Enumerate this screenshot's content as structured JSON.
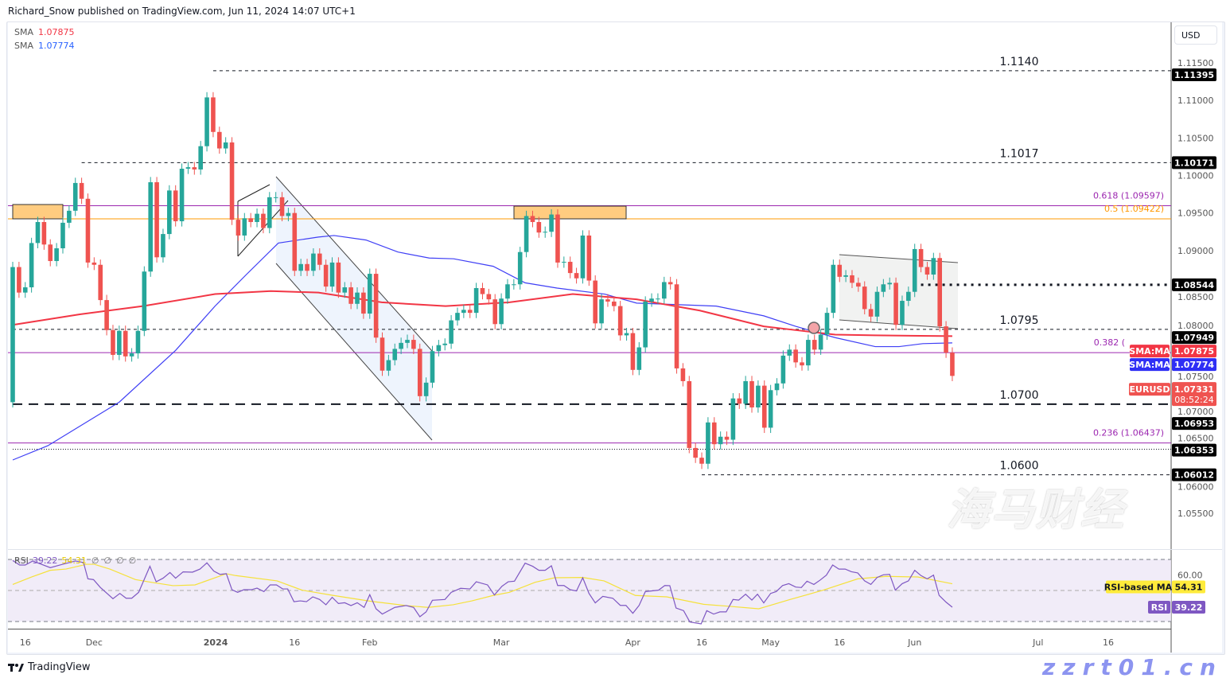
{
  "header": {
    "published": "Richard_Snow published on TradingView.com, Jun 11, 2024 14:07 UTC+1"
  },
  "legend": [
    {
      "label": "SMA",
      "value": "1.07875",
      "color": "#f23645"
    },
    {
      "label": "SMA",
      "value": "1.07774",
      "color": "#2962ff"
    }
  ],
  "currency_button": "USD",
  "footer": {
    "brand": "TradingView"
  },
  "watermark": {
    "line1": "海马财经",
    "line2": "zzrt01.cn"
  },
  "colors": {
    "up": "#26a69a",
    "down": "#ef5350",
    "sma200": "#f23645",
    "sma50": "#3f3ff5",
    "rsi": "#7e57c2",
    "rsi_ma": "#ffeb3b",
    "fib_purple": "#9c27b0",
    "fib_orange": "#ff9800"
  },
  "chart_data": {
    "type": "candlestick",
    "symbol": "EURUSD",
    "ylim": [
      1.049,
      1.1175
    ],
    "price_ticks": [
      "1.11500",
      "1.11000",
      "1.10500",
      "1.10000",
      "1.09500",
      "1.09000",
      "1.08500",
      "1.08000",
      "1.07500",
      "1.07000",
      "1.06500",
      "1.06000",
      "1.05500"
    ],
    "first_open": 1.0698,
    "closes": [
      1.0878,
      1.0844,
      1.0851,
      1.091,
      1.0938,
      1.0908,
      1.0886,
      1.0903,
      1.0937,
      1.0953,
      1.099,
      1.0969,
      1.0884,
      1.0881,
      1.0834,
      1.0794,
      1.0761,
      1.0793,
      1.0759,
      1.0763,
      1.0793,
      1.0872,
      1.0991,
      1.0891,
      1.0922,
      1.098,
      1.0939,
      1.1009,
      1.1011,
      1.1008,
      1.1039,
      1.1104,
      1.1058,
      1.1036,
      1.1044,
      1.0941,
      1.092,
      1.0943,
      1.0938,
      1.0949,
      1.093,
      1.0971,
      1.0971,
      1.0946,
      1.095,
      1.0873,
      1.0882,
      1.0873,
      1.0896,
      1.0881,
      1.0852,
      1.0884,
      1.0844,
      1.0851,
      1.0829,
      1.0844,
      1.0816,
      1.0869,
      1.0784,
      1.074,
      1.0754,
      1.0769,
      1.0777,
      1.0781,
      1.0769,
      1.0706,
      1.0724,
      1.0766,
      1.0774,
      1.0776,
      1.0807,
      1.0817,
      1.0821,
      1.0817,
      1.085,
      1.0842,
      1.0835,
      1.0802,
      1.0836,
      1.0855,
      1.0855,
      1.0898,
      1.0946,
      1.0938,
      1.0924,
      1.0925,
      1.0948,
      1.0884,
      1.0885,
      1.087,
      1.0863,
      1.092,
      1.086,
      1.0803,
      1.0835,
      1.0832,
      1.0826,
      1.0787,
      1.079,
      1.0741,
      1.0771,
      1.0832,
      1.0836,
      1.0836,
      1.0858,
      1.0855,
      1.0743,
      1.0726,
      1.0637,
      1.0624,
      1.0616,
      1.0671,
      1.0642,
      1.0652,
      1.0648,
      1.0703,
      1.0696,
      1.0726,
      1.0691,
      1.072,
      1.0664,
      1.0714,
      1.0723,
      1.076,
      1.0768,
      1.0751,
      1.0747,
      1.0781,
      1.0768,
      1.0788,
      1.0817,
      1.0881,
      1.0865,
      1.0867,
      1.0857,
      1.0852,
      1.0822,
      1.0812,
      1.0845,
      1.0855,
      1.0857,
      1.0801,
      1.0833,
      1.0845,
      1.0902,
      1.0878,
      1.0868,
      1.089,
      1.0799,
      1.0764,
      1.0733
    ],
    "time_labels": [
      {
        "text": "16",
        "bar": 2
      },
      {
        "text": "Dec",
        "bar": 13
      },
      {
        "text": "2024",
        "bar": 32.4,
        "bold": true
      },
      {
        "text": "16",
        "bar": 45
      },
      {
        "text": "Feb",
        "bar": 57
      },
      {
        "text": "Mar",
        "bar": 78
      },
      {
        "text": "Apr",
        "bar": 99
      },
      {
        "text": "16",
        "bar": 110
      },
      {
        "text": "May",
        "bar": 121
      },
      {
        "text": "16",
        "bar": 132
      },
      {
        "text": "Jun",
        "bar": 144
      },
      {
        "text": "Jul",
        "bar": 163.7
      },
      {
        "text": "16",
        "bar": 174.9
      }
    ],
    "sma_red": {
      "value": "1.07875",
      "bars": [
        0,
        10.7,
        20.8,
        32.3,
        41.2,
        48.8,
        58.9,
        69.1,
        79.3,
        89.4,
        99.6,
        109.7,
        119.9,
        125,
        131.3,
        137.7,
        150
      ],
      "prices": [
        1.0801,
        1.0815,
        1.0826,
        1.0842,
        1.0846,
        1.0844,
        1.0831,
        1.0826,
        1.0831,
        1.0842,
        1.0835,
        1.082,
        1.0799,
        1.0794,
        1.0788,
        1.0787,
        1.0786
      ]
    },
    "sma_blue": {
      "value": "1.07774",
      "bars": [
        0,
        5.6,
        17,
        26,
        32.3,
        37.3,
        42.4,
        48.8,
        51.3,
        56.4,
        61.5,
        66.5,
        70.4,
        76.7,
        81.8,
        86.9,
        94.5,
        99.6,
        105.9,
        112.3,
        119.9,
        125,
        131.3,
        137.7,
        141.5,
        145.3,
        150
      ],
      "prices": [
        1.0621,
        1.064,
        1.0698,
        1.0767,
        1.0826,
        1.0868,
        1.091,
        1.0918,
        1.092,
        1.0914,
        1.0898,
        1.089,
        1.0889,
        1.0879,
        1.0857,
        1.085,
        1.0842,
        1.083,
        1.0828,
        1.0826,
        1.0813,
        1.0799,
        1.0784,
        1.0772,
        1.0772,
        1.0776,
        1.0777
      ]
    },
    "levels": [
      {
        "label": "1.1140",
        "price": 1.11395,
        "tag": "1.11395",
        "style": "dashed",
        "from_bar": 32
      },
      {
        "label": "1.1017",
        "price": 1.10171,
        "tag": "1.10171",
        "style": "dashed",
        "from_bar": 11
      },
      {
        "label": "1.0795",
        "price": 1.0795,
        "tag": "",
        "style": "dashed",
        "from_bar": 0
      },
      {
        "label": "1.0700",
        "price": 1.06953,
        "tag": "1.06953",
        "style": "thick-dashed",
        "from_bar": 0
      },
      {
        "label": "",
        "price": 1.06353,
        "tag": "1.06353",
        "style": "dotted",
        "from_bar": 0
      },
      {
        "label": "1.0600",
        "price": 1.06012,
        "tag": "1.06012",
        "style": "dashed",
        "from_bar": 110
      },
      {
        "label": "",
        "price": 1.08544,
        "tag": "1.08544",
        "style": "thick-dotted",
        "from_bar": 145
      }
    ],
    "extra_tags": [
      {
        "text": "1.07949",
        "price": 1.07949
      }
    ],
    "fib_levels": [
      {
        "text": "0.618 (1.09597)",
        "price": 1.09597,
        "color": "#9c27b0"
      },
      {
        "text": "0.5 (1.09422)",
        "price": 1.09422,
        "color": "#ff9800"
      },
      {
        "text": "0.382 (",
        "price": 1.0764,
        "color": "#9c27b0"
      },
      {
        "text": "0.236 (1.06437)",
        "price": 1.06437,
        "color": "#9c27b0"
      }
    ],
    "ma_tags": [
      {
        "name": "SMA:MA",
        "value": "1.07875",
        "color": "#f23645",
        "price": 1.07875
      },
      {
        "name": "SMA:MA",
        "value": "1.07774",
        "color": "#2f2ff5",
        "price": 1.07774
      }
    ],
    "last_price": {
      "symbol": "EURUSD",
      "value": "1.07331",
      "countdown": "08:52:24",
      "color": "#ef5350"
    },
    "rsi": {
      "label": "RSI",
      "value": "39.22",
      "ma_value": "54.31",
      "ma_label": "RSI-based MA",
      "extra": [
        "∅",
        "∅",
        "∅",
        "∅"
      ],
      "levels": [
        70,
        50,
        30
      ],
      "tick": "60.00",
      "bars": [
        0,
        1.1,
        2,
        3.2,
        6,
        7.5,
        10,
        11.3,
        12,
        12.9,
        14,
        16,
        17.1,
        18.1,
        19,
        20.1,
        21.9,
        22.9,
        24,
        25.1,
        26,
        27.2,
        28.7,
        29.9,
        31,
        32.1,
        33.1,
        34.1,
        35,
        35.9,
        36.9,
        38.1,
        39,
        40.1,
        41.1,
        42.1,
        43.1,
        43.9,
        44.9,
        45.9,
        46.9,
        47.9,
        49,
        50,
        51,
        52,
        53,
        54,
        55,
        56.1,
        57,
        58,
        59,
        61,
        62.8,
        64,
        65,
        66,
        67,
        69,
        70,
        71.5,
        73,
        74,
        75.8,
        76.9,
        78.1,
        79.1,
        80.1,
        81.8,
        83,
        84,
        85,
        86,
        87,
        88,
        89,
        90,
        91,
        92,
        93,
        94.2,
        95.8,
        97,
        97.9,
        99,
        100,
        101,
        103.1,
        104.1,
        104.9,
        105.9,
        107.1,
        108.1,
        109.9,
        110.8,
        111.9,
        112.9,
        113.9,
        115,
        115.9,
        117,
        118,
        118.9,
        119.9,
        121,
        121.9,
        122.9,
        123.9,
        125,
        125.9,
        126.8,
        127.9,
        128.9,
        129.9,
        130.9,
        131.9,
        132.9,
        133.9,
        134.9,
        136,
        137,
        138,
        139,
        140,
        140.9,
        142,
        143,
        144,
        145,
        146,
        147,
        147.9,
        149,
        150
      ],
      "values": [
        69.3,
        66.4,
        66.4,
        69,
        64.7,
        66.4,
        69,
        68,
        57.5,
        57,
        51.9,
        44.7,
        48.1,
        45,
        45,
        48.8,
        65.6,
        55.6,
        57.9,
        61.6,
        57.9,
        62,
        61.8,
        63.8,
        67.8,
        62.5,
        60.4,
        60.8,
        50.5,
        48.8,
        50.5,
        50.5,
        51.5,
        49.3,
        53.6,
        53.6,
        51,
        51,
        42.8,
        43.3,
        42.8,
        45.9,
        44.2,
        40.8,
        45.6,
        41.6,
        42.1,
        40.3,
        42.1,
        39.1,
        47.3,
        38.2,
        34.8,
        39.1,
        40.3,
        39.1,
        33.1,
        36.2,
        43.7,
        44.2,
        48.8,
        51.4,
        51,
        55.6,
        53.6,
        47.1,
        52.7,
        55.6,
        56,
        67.6,
        65.6,
        63,
        63,
        65.9,
        53.2,
        53.2,
        50.5,
        49.7,
        58.2,
        48.1,
        42,
        46.2,
        45,
        40.4,
        40.4,
        35.3,
        40.4,
        49.3,
        50.2,
        53.2,
        53.1,
        38.7,
        37,
        29.7,
        28.5,
        37,
        34.8,
        36.2,
        36.2,
        44.2,
        43.8,
        47.6,
        43.8,
        47.6,
        42,
        48.1,
        49.3,
        53.2,
        54.4,
        52.2,
        51.9,
        56,
        53.9,
        56.7,
        59.9,
        66.4,
        63.8,
        63.8,
        62.1,
        61.3,
        56.2,
        53.9,
        58.4,
        60.1,
        60.4,
        50.2,
        54.4,
        56.2,
        63,
        59.6,
        57.5,
        59.9,
        46.8,
        42.5,
        39.22
      ],
      "ma_bars": [
        0,
        3,
        6,
        8.5,
        11.8,
        13,
        15.5,
        19.6,
        22.1,
        25.6,
        29.1,
        34.1,
        35.6,
        42.2,
        46.2,
        51.2,
        57.2,
        62.8,
        66.3,
        70.3,
        73.3,
        76.7,
        79.3,
        83.4,
        86.5,
        91,
        94.4,
        99.4,
        104.4,
        110.3,
        114.1,
        119.1,
        124.1,
        129.4,
        134.9,
        139.5,
        144.5,
        150
      ],
      "ma_values": [
        53.9,
        58.7,
        63,
        63.8,
        66.9,
        66.9,
        63.8,
        57,
        55.3,
        53.1,
        53.6,
        60.8,
        59.6,
        56.2,
        50.2,
        46.8,
        43,
        40.3,
        39.1,
        40.8,
        43.3,
        46.8,
        48.8,
        55.3,
        58.2,
        58.4,
        56.2,
        46.8,
        45.9,
        41.1,
        39.9,
        38.2,
        44.2,
        50.2,
        57.5,
        59.1,
        58.7,
        54.31
      ]
    }
  }
}
